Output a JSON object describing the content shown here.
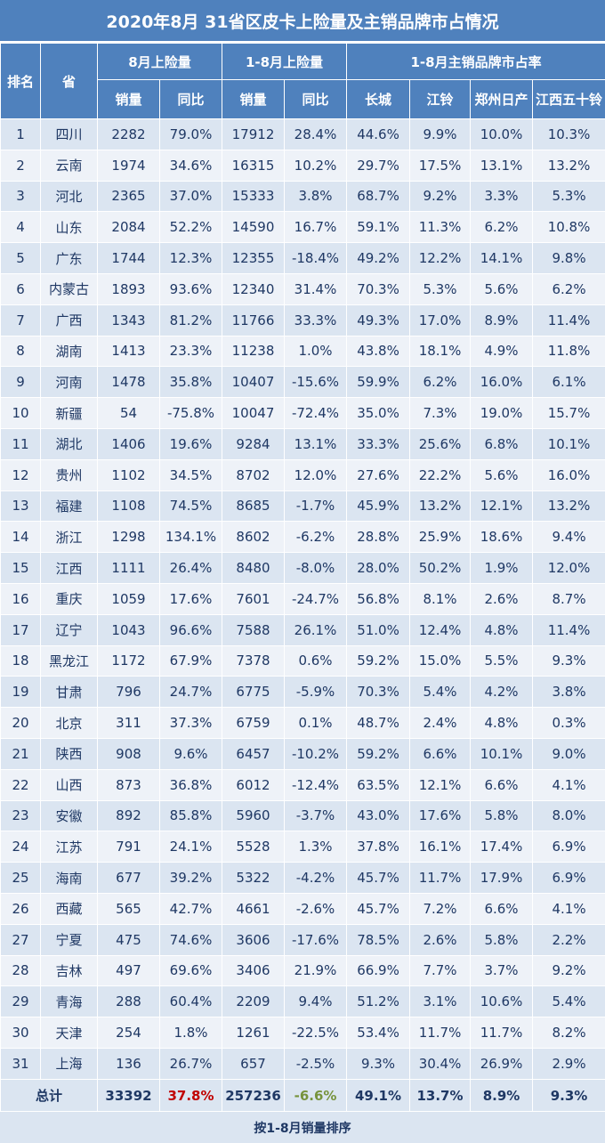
{
  "title": "2020年8月 31省区皮卡上险量及主销品牌市占情况",
  "headers": {
    "rank": "排名",
    "province": "省",
    "group_aug": "8月上险量",
    "group_ytd": "1-8月上险量",
    "group_share": "1-8月主销品牌市占率",
    "sales": "销量",
    "yoy": "同比",
    "brands": [
      "长城",
      "江铃",
      "郑州日产",
      "江西五十铃"
    ]
  },
  "rows": [
    [
      "1",
      "四川",
      "2282",
      "79.0%",
      "17912",
      "28.4%",
      "44.6%",
      "9.9%",
      "10.0%",
      "10.3%"
    ],
    [
      "2",
      "云南",
      "1974",
      "34.6%",
      "16315",
      "10.2%",
      "29.7%",
      "17.5%",
      "13.1%",
      "13.2%"
    ],
    [
      "3",
      "河北",
      "2365",
      "37.0%",
      "15333",
      "3.8%",
      "68.7%",
      "9.2%",
      "3.3%",
      "5.3%"
    ],
    [
      "4",
      "山东",
      "2084",
      "52.2%",
      "14590",
      "16.7%",
      "59.1%",
      "11.3%",
      "6.2%",
      "10.8%"
    ],
    [
      "5",
      "广东",
      "1744",
      "12.3%",
      "12355",
      "-18.4%",
      "49.2%",
      "12.2%",
      "14.1%",
      "9.8%"
    ],
    [
      "6",
      "内蒙古",
      "1893",
      "93.6%",
      "12340",
      "31.4%",
      "70.3%",
      "5.3%",
      "5.6%",
      "6.2%"
    ],
    [
      "7",
      "广西",
      "1343",
      "81.2%",
      "11766",
      "33.3%",
      "49.3%",
      "17.0%",
      "8.9%",
      "11.4%"
    ],
    [
      "8",
      "湖南",
      "1413",
      "23.3%",
      "11238",
      "1.0%",
      "43.8%",
      "18.1%",
      "4.9%",
      "11.8%"
    ],
    [
      "9",
      "河南",
      "1478",
      "35.8%",
      "10407",
      "-15.6%",
      "59.9%",
      "6.2%",
      "16.0%",
      "6.1%"
    ],
    [
      "10",
      "新疆",
      "54",
      "-75.8%",
      "10047",
      "-72.4%",
      "35.0%",
      "7.3%",
      "19.0%",
      "15.7%"
    ],
    [
      "11",
      "湖北",
      "1406",
      "19.6%",
      "9284",
      "13.1%",
      "33.3%",
      "25.6%",
      "6.8%",
      "10.1%"
    ],
    [
      "12",
      "贵州",
      "1102",
      "34.5%",
      "8702",
      "12.0%",
      "27.6%",
      "22.2%",
      "5.6%",
      "16.0%"
    ],
    [
      "13",
      "福建",
      "1108",
      "74.5%",
      "8685",
      "-1.7%",
      "45.9%",
      "13.2%",
      "12.1%",
      "13.2%"
    ],
    [
      "14",
      "浙江",
      "1298",
      "134.1%",
      "8602",
      "-6.2%",
      "28.8%",
      "25.9%",
      "18.6%",
      "9.4%"
    ],
    [
      "15",
      "江西",
      "1111",
      "26.4%",
      "8480",
      "-8.0%",
      "28.0%",
      "50.2%",
      "1.9%",
      "12.0%"
    ],
    [
      "16",
      "重庆",
      "1059",
      "17.6%",
      "7601",
      "-24.7%",
      "56.8%",
      "8.1%",
      "2.6%",
      "8.7%"
    ],
    [
      "17",
      "辽宁",
      "1043",
      "96.6%",
      "7588",
      "26.1%",
      "51.0%",
      "12.4%",
      "4.8%",
      "11.4%"
    ],
    [
      "18",
      "黑龙江",
      "1172",
      "67.9%",
      "7378",
      "0.6%",
      "59.2%",
      "15.0%",
      "5.5%",
      "9.3%"
    ],
    [
      "19",
      "甘肃",
      "796",
      "24.7%",
      "6775",
      "-5.9%",
      "70.3%",
      "5.4%",
      "4.2%",
      "3.8%"
    ],
    [
      "20",
      "北京",
      "311",
      "37.3%",
      "6759",
      "0.1%",
      "48.7%",
      "2.4%",
      "4.8%",
      "0.3%"
    ],
    [
      "21",
      "陕西",
      "908",
      "9.6%",
      "6457",
      "-10.2%",
      "59.2%",
      "6.6%",
      "10.1%",
      "9.0%"
    ],
    [
      "22",
      "山西",
      "873",
      "36.8%",
      "6012",
      "-12.4%",
      "63.5%",
      "12.1%",
      "6.6%",
      "4.1%"
    ],
    [
      "23",
      "安徽",
      "892",
      "85.8%",
      "5960",
      "-3.7%",
      "43.0%",
      "17.6%",
      "5.8%",
      "8.0%"
    ],
    [
      "24",
      "江苏",
      "791",
      "24.1%",
      "5528",
      "1.3%",
      "37.8%",
      "16.1%",
      "17.4%",
      "6.9%"
    ],
    [
      "25",
      "海南",
      "677",
      "39.2%",
      "5322",
      "-4.2%",
      "45.7%",
      "11.7%",
      "17.9%",
      "6.9%"
    ],
    [
      "26",
      "西藏",
      "565",
      "42.7%",
      "4661",
      "-2.6%",
      "45.7%",
      "7.2%",
      "6.6%",
      "4.1%"
    ],
    [
      "27",
      "宁夏",
      "475",
      "74.6%",
      "3606",
      "-17.6%",
      "78.5%",
      "2.6%",
      "5.8%",
      "2.2%"
    ],
    [
      "28",
      "吉林",
      "497",
      "69.6%",
      "3406",
      "21.9%",
      "66.9%",
      "7.7%",
      "3.7%",
      "9.2%"
    ],
    [
      "29",
      "青海",
      "288",
      "60.4%",
      "2209",
      "9.4%",
      "51.2%",
      "3.1%",
      "10.6%",
      "5.4%"
    ],
    [
      "30",
      "天津",
      "254",
      "1.8%",
      "1261",
      "-22.5%",
      "53.4%",
      "11.7%",
      "11.7%",
      "8.2%"
    ],
    [
      "31",
      "上海",
      "136",
      "26.7%",
      "657",
      "-2.5%",
      "9.3%",
      "30.4%",
      "26.9%",
      "2.9%"
    ]
  ],
  "total": [
    "总计",
    "33392",
    "37.8%",
    "257236",
    "-6.6%",
    "49.1%",
    "13.7%",
    "8.9%",
    "9.3%"
  ],
  "footer": "按1-8月销量排序",
  "colors": {
    "header_bg": "#4f81bd",
    "row_bg": "#dbe5f1",
    "row_alt_bg": "#eef2f8",
    "positive": "#c00000",
    "negative": "#77933c",
    "text": "#1f3864"
  }
}
